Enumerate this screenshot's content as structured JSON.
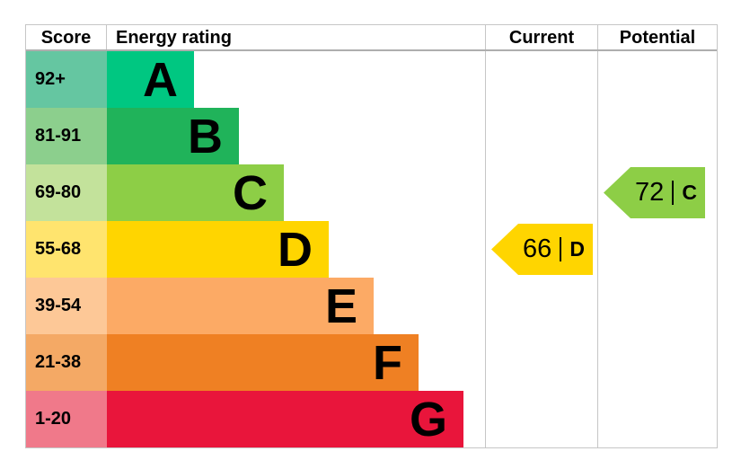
{
  "table": {
    "headers": {
      "score": "Score",
      "energy_rating": "Energy rating",
      "current": "Current",
      "potential": "Potential"
    },
    "bands": [
      {
        "score": "92+",
        "letter": "A",
        "bar_color": "#00c781",
        "score_bg": "#65c6a1"
      },
      {
        "score": "81-91",
        "letter": "B",
        "bar_color": "#20b35a",
        "score_bg": "#8ccf8d"
      },
      {
        "score": "69-80",
        "letter": "C",
        "bar_color": "#8dce46",
        "score_bg": "#c3e29b"
      },
      {
        "score": "55-68",
        "letter": "D",
        "bar_color": "#ffd500",
        "score_bg": "#ffe46e"
      },
      {
        "score": "39-54",
        "letter": "E",
        "bar_color": "#fcaa65",
        "score_bg": "#fdc897"
      },
      {
        "score": "21-38",
        "letter": "F",
        "bar_color": "#ef8023",
        "score_bg": "#f4a965"
      },
      {
        "score": "1-20",
        "letter": "G",
        "bar_color": "#e9153b",
        "score_bg": "#f0798a"
      }
    ],
    "current": {
      "value": "66",
      "letter": "D",
      "band_index": 3,
      "color": "#ffd500"
    },
    "potential": {
      "value": "72",
      "letter": "C",
      "band_index": 2,
      "color": "#8dce46"
    }
  },
  "chart_data": {
    "type": "bar",
    "subtype": "epc-energy-efficiency-rating",
    "title": "Energy rating",
    "categories": [
      "A",
      "B",
      "C",
      "D",
      "E",
      "F",
      "G"
    ],
    "score_ranges": [
      "92+",
      "81-91",
      "69-80",
      "55-68",
      "39-54",
      "21-38",
      "1-20"
    ],
    "band_colors": [
      "#00c781",
      "#20b35a",
      "#8dce46",
      "#ffd500",
      "#fcaa65",
      "#ef8023",
      "#e9153b"
    ],
    "columns": [
      "Score",
      "Energy rating",
      "Current",
      "Potential"
    ],
    "current": {
      "score": 66,
      "rating": "D"
    },
    "potential": {
      "score": 72,
      "rating": "C"
    },
    "grid": false,
    "legend_position": "none"
  }
}
